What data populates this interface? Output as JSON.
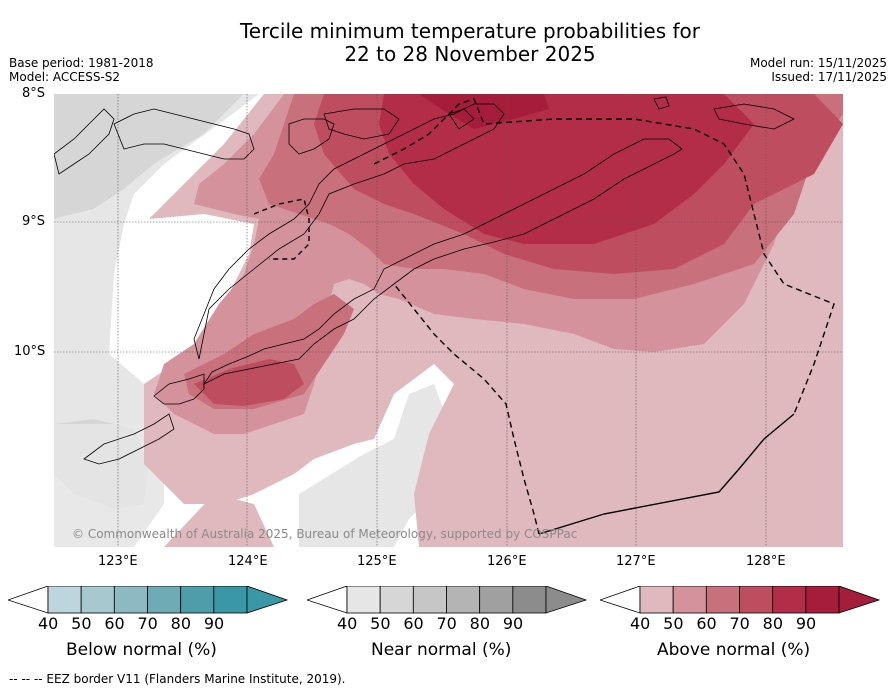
{
  "title": {
    "line1": "Tercile minimum temperature probabilities for",
    "line2": "22 to 28 November 2025"
  },
  "meta": {
    "base_period": "Base period: 1981-2018",
    "model": "Model: ACCESS-S2",
    "model_run": "Model run: 15/11/2025",
    "issued": "Issued: 17/11/2025"
  },
  "map": {
    "lat_labels": [
      "8°S",
      "9°S",
      "10°S"
    ],
    "lon_labels": [
      "123°E",
      "124°E",
      "125°E",
      "126°E",
      "127°E",
      "128°E"
    ],
    "copyright": "© Commonwealth of Australia 2025, Bureau of Meteorology, supported by COSPPac",
    "colors": {
      "above_40": "#e0b9bf",
      "above_50": "#d4939c",
      "above_60": "#c9707d",
      "above_70": "#bd4d5f",
      "above_80": "#b32d48",
      "above_90": "#a51d3b",
      "near_40": "#e6e6e6",
      "near_50": "#d6d6d6",
      "below_40": "#bdd5dc"
    }
  },
  "colorbars": [
    {
      "label": "Below normal (%)",
      "ticks": [
        "40",
        "50",
        "60",
        "70",
        "80",
        "90"
      ],
      "colors": [
        "#bdd5dc",
        "#a7c8ce",
        "#8dbac2",
        "#6fabb5",
        "#4d9daa",
        "#3a97a6"
      ]
    },
    {
      "label": "Near normal (%)",
      "ticks": [
        "40",
        "50",
        "60",
        "70",
        "80",
        "90"
      ],
      "colors": [
        "#e6e6e6",
        "#d6d6d6",
        "#c6c6c6",
        "#b4b4b4",
        "#a0a0a0",
        "#8c8c8c"
      ]
    },
    {
      "label": "Above normal (%)",
      "ticks": [
        "40",
        "50",
        "60",
        "70",
        "80",
        "90"
      ],
      "colors": [
        "#e0b9bf",
        "#d4939c",
        "#c9707d",
        "#bd4d5f",
        "#b32d48",
        "#a51d3b"
      ]
    }
  ],
  "footnote": "--  --  -- EEZ border V11 (Flanders Marine Institute, 2019)."
}
